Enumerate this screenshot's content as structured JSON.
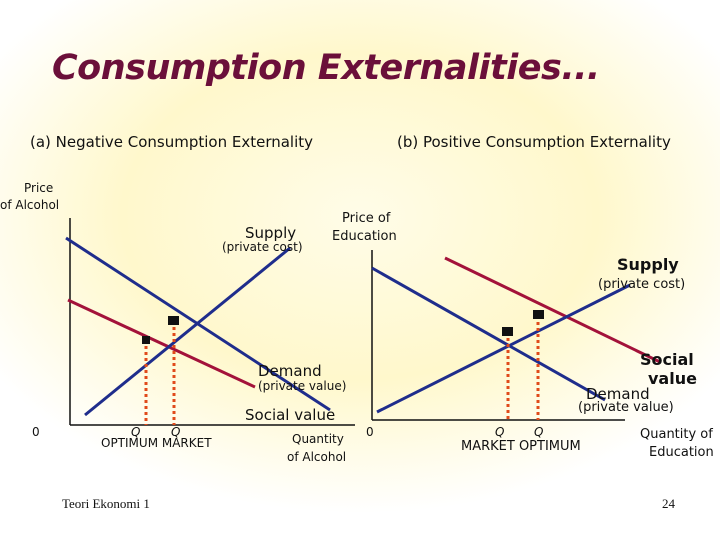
{
  "title": "Consumption Externalities...",
  "panel_a": {
    "heading": "(a) Negative Consumption Externality",
    "y_axis": [
      "Price",
      "of Alcohol"
    ],
    "origin": "0",
    "supply": "Supply",
    "supply_note": "(private cost)",
    "demand": "Demand",
    "demand_note": "(private value)",
    "social": "Social value",
    "q1": "Q",
    "q2": "Q",
    "q_labels": "OPTIMUM MARKET",
    "x_axis": [
      "Quantity",
      "of Alcohol"
    ]
  },
  "panel_b": {
    "heading": "(b) Positive Consumption Externality",
    "y_axis": [
      "Price of",
      "Education"
    ],
    "origin": "0",
    "supply": "Supply",
    "supply_note": "(private cost)",
    "social": [
      "Social",
      "value"
    ],
    "demand": "Demand",
    "demand_note": "(private value)",
    "q1": "Q",
    "q2": "Q",
    "q_labels": "MARKET OPTIMUM",
    "x_axis": [
      "Quantity of",
      "Education"
    ]
  },
  "footer_left": "Teori Ekonomi 1",
  "page_number": "24",
  "colors": {
    "title": "#6b0f3a",
    "blue": "#1f2d8c",
    "red": "#a3123a",
    "dotted": "#e04a1a"
  }
}
